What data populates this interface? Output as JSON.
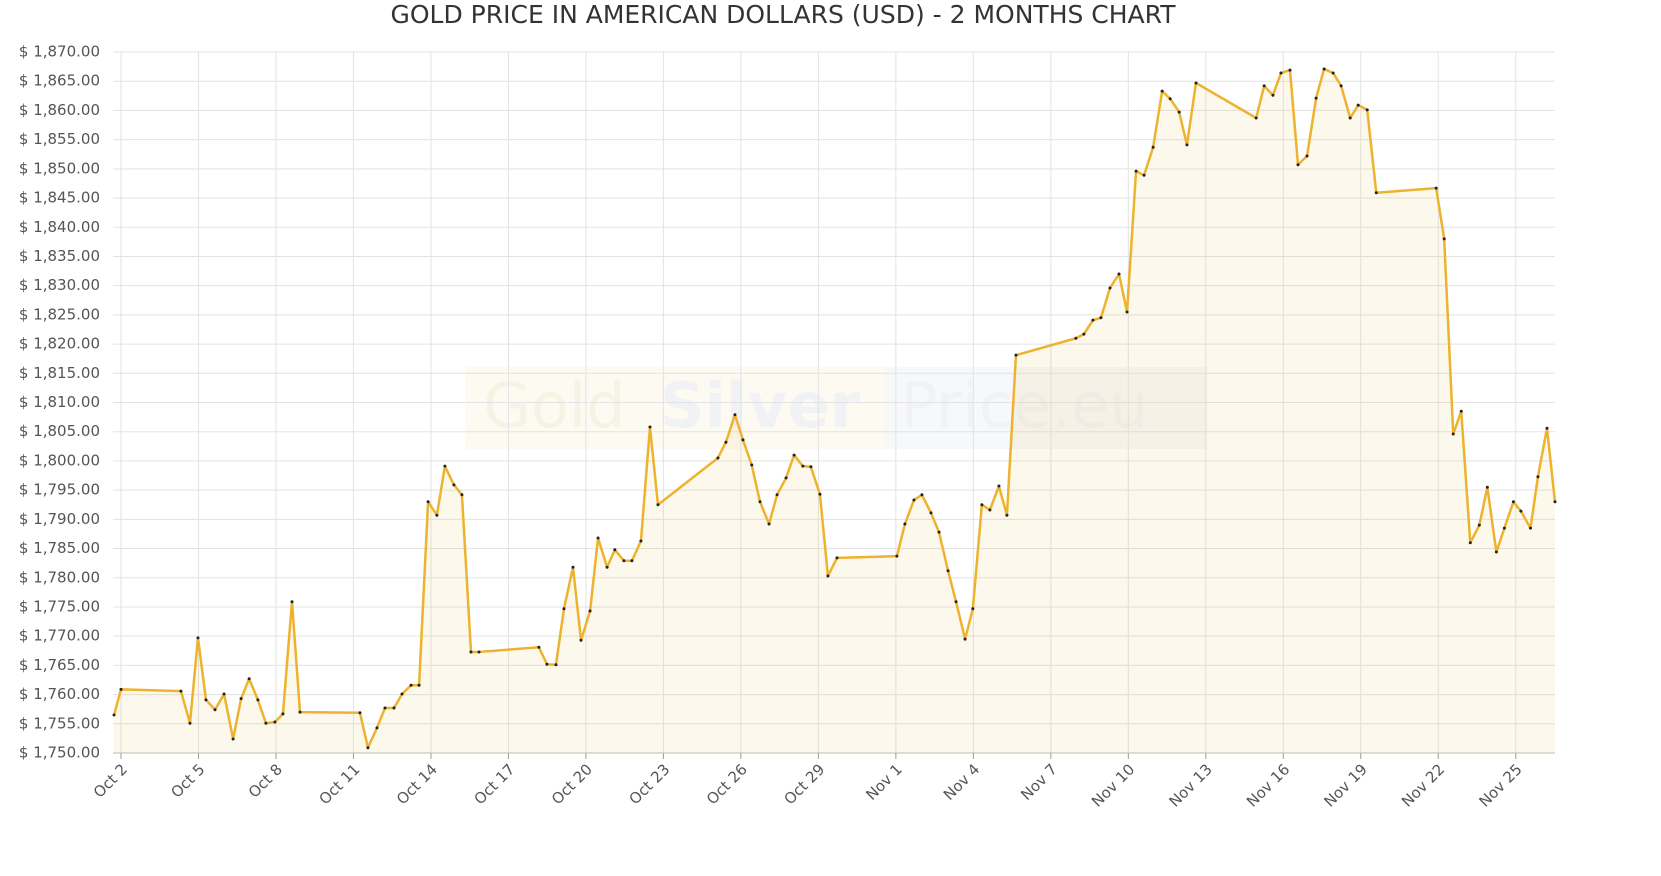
{
  "chart_data": {
    "type": "area",
    "title": "GOLD PRICE IN AMERICAN DOLLARS (USD) - 2 MONTHS CHART",
    "watermark": [
      "Gold",
      "Silver",
      "Price.eu"
    ],
    "grid": true,
    "xlim": [
      0.69,
      56.52
    ],
    "ylim": [
      1750,
      1870
    ],
    "xticks": [
      {
        "value": 1,
        "label": "Oct 2"
      },
      {
        "value": 4,
        "label": "Oct 5"
      },
      {
        "value": 7,
        "label": "Oct 8"
      },
      {
        "value": 10,
        "label": "Oct 11"
      },
      {
        "value": 13,
        "label": "Oct 14"
      },
      {
        "value": 16,
        "label": "Oct 17"
      },
      {
        "value": 19,
        "label": "Oct 20"
      },
      {
        "value": 22,
        "label": "Oct 23"
      },
      {
        "value": 25,
        "label": "Oct 26"
      },
      {
        "value": 28,
        "label": "Oct 29"
      },
      {
        "value": 31,
        "label": "Nov 1"
      },
      {
        "value": 34,
        "label": "Nov 4"
      },
      {
        "value": 37,
        "label": "Nov 7"
      },
      {
        "value": 40,
        "label": "Nov 10"
      },
      {
        "value": 43,
        "label": "Nov 13"
      },
      {
        "value": 46,
        "label": "Nov 16"
      },
      {
        "value": 49,
        "label": "Nov 19"
      },
      {
        "value": 52,
        "label": "Nov 22"
      },
      {
        "value": 55,
        "label": "Nov 25"
      }
    ],
    "yticks": [
      {
        "value": 1750,
        "label": "$ 1,750.00"
      },
      {
        "value": 1755,
        "label": "$ 1,755.00"
      },
      {
        "value": 1760,
        "label": "$ 1,760.00"
      },
      {
        "value": 1765,
        "label": "$ 1,765.00"
      },
      {
        "value": 1770,
        "label": "$ 1,770.00"
      },
      {
        "value": 1775,
        "label": "$ 1,775.00"
      },
      {
        "value": 1780,
        "label": "$ 1,780.00"
      },
      {
        "value": 1785,
        "label": "$ 1,785.00"
      },
      {
        "value": 1790,
        "label": "$ 1,790.00"
      },
      {
        "value": 1795,
        "label": "$ 1,795.00"
      },
      {
        "value": 1800,
        "label": "$ 1,800.00"
      },
      {
        "value": 1805,
        "label": "$ 1,805.00"
      },
      {
        "value": 1810,
        "label": "$ 1,810.00"
      },
      {
        "value": 1815,
        "label": "$ 1,815.00"
      },
      {
        "value": 1820,
        "label": "$ 1,820.00"
      },
      {
        "value": 1825,
        "label": "$ 1,825.00"
      },
      {
        "value": 1830,
        "label": "$ 1,830.00"
      },
      {
        "value": 1835,
        "label": "$ 1,835.00"
      },
      {
        "value": 1840,
        "label": "$ 1,840.00"
      },
      {
        "value": 1845,
        "label": "$ 1,845.00"
      },
      {
        "value": 1850,
        "label": "$ 1,850.00"
      },
      {
        "value": 1855,
        "label": "$ 1,855.00"
      },
      {
        "value": 1860,
        "label": "$ 1,860.00"
      },
      {
        "value": 1865,
        "label": "$ 1,865.00"
      },
      {
        "value": 1870,
        "label": "$ 1,870.00"
      }
    ],
    "x": [
      0.73,
      1,
      3.32,
      3.67,
      3.98,
      4.29,
      4.64,
      4.99,
      5.34,
      5.65,
      5.96,
      6.3,
      6.61,
      6.96,
      7.27,
      7.62,
      7.93,
      10.25,
      10.56,
      10.91,
      11.22,
      11.57,
      11.88,
      12.23,
      12.54,
      12.89,
      13.23,
      13.54,
      13.89,
      14.2,
      14.55,
      14.86,
      17.18,
      17.49,
      17.84,
      18.15,
      18.5,
      18.81,
      19.16,
      19.47,
      19.82,
      20.12,
      20.47,
      20.78,
      21.13,
      21.48,
      21.79,
      24.11,
      24.42,
      24.77,
      25.08,
      25.42,
      25.74,
      26.09,
      26.4,
      26.75,
      27.06,
      27.4,
      27.71,
      28.06,
      28.37,
      28.72,
      31.04,
      31.35,
      31.7,
      32.01,
      32.36,
      32.67,
      33.02,
      33.33,
      33.68,
      33.98,
      34.33,
      34.64,
      34.99,
      35.3,
      35.65,
      37.97,
      38.28,
      38.63,
      38.94,
      39.29,
      39.64,
      39.95,
      40.3,
      40.61,
      40.96,
      41.31,
      41.62,
      41.97,
      42.27,
      42.62,
      44.95,
      45.26,
      45.6,
      45.91,
      46.26,
      46.57,
      46.92,
      47.27,
      47.58,
      47.93,
      48.24,
      48.59,
      48.9,
      49.25,
      49.6,
      51.92,
      52.23,
      52.58,
      52.89,
      53.24,
      53.59,
      53.9,
      54.25,
      54.56,
      54.91,
      55.2,
      55.57,
      55.86,
      56.21,
      56.52
    ],
    "series": [
      {
        "color": "#eeb32e",
        "values": [
          1756.5,
          1760.9,
          1760.6,
          1755.1,
          1769.7,
          1759.1,
          1757.4,
          1760.1,
          1752.4,
          1759.3,
          1762.7,
          1759.1,
          1755.1,
          1755.3,
          1756.7,
          1775.9,
          1757.0,
          1756.9,
          1750.9,
          1754.3,
          1757.7,
          1757.7,
          1760.1,
          1761.6,
          1761.6,
          1793.0,
          1790.7,
          1799.1,
          1795.9,
          1794.2,
          1767.3,
          1767.3,
          1768.1,
          1765.2,
          1765.1,
          1774.7,
          1781.8,
          1769.3,
          1774.3,
          1786.8,
          1781.8,
          1784.8,
          1782.9,
          1782.9,
          1786.3,
          1805.8,
          1792.5,
          1800.5,
          1803.2,
          1807.9,
          1803.6,
          1799.3,
          1793.0,
          1789.2,
          1794.2,
          1797.1,
          1801.0,
          1799.1,
          1799.0,
          1794.3,
          1780.3,
          1783.4,
          1783.7,
          1789.2,
          1793.3,
          1794.2,
          1791.1,
          1787.8,
          1781.2,
          1775.9,
          1769.5,
          1774.7,
          1792.5,
          1791.6,
          1795.7,
          1790.7,
          1818.1,
          1821.0,
          1821.7,
          1824.1,
          1824.5,
          1829.6,
          1832.0,
          1825.5,
          1849.6,
          1848.9,
          1853.7,
          1863.3,
          1862.0,
          1859.7,
          1854.1,
          1864.7,
          1858.7,
          1864.2,
          1862.6,
          1866.4,
          1866.9,
          1850.7,
          1852.2,
          1862.1,
          1867.1,
          1866.4,
          1864.2,
          1858.7,
          1860.9,
          1860.1,
          1845.9,
          1846.7,
          1838.0,
          1804.6,
          1808.5,
          1786.0,
          1789.0,
          1795.5,
          1784.4,
          1788.5,
          1793.0,
          1791.4,
          1788.5,
          1797.3,
          1805.6,
          1793.0
        ]
      }
    ]
  }
}
